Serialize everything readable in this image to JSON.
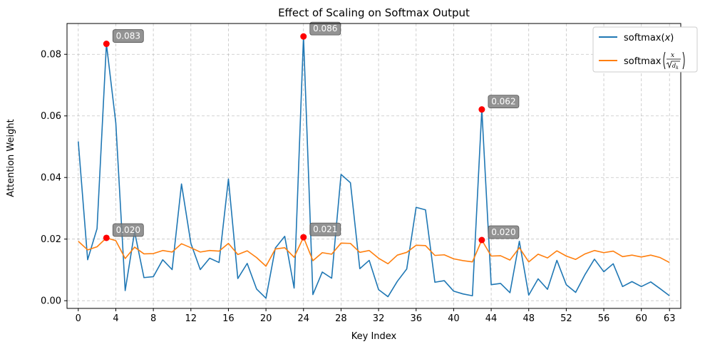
{
  "chart_data": {
    "type": "line",
    "title": "Effect of Scaling on Softmax Output",
    "xlabel": "Key Index",
    "ylabel": "Attention Weight",
    "xlim": [
      -1.2,
      64.2
    ],
    "ylim": [
      -0.0025,
      0.09
    ],
    "xticks": [
      0,
      4,
      8,
      12,
      16,
      20,
      24,
      28,
      32,
      36,
      40,
      44,
      48,
      52,
      56,
      60,
      63
    ],
    "yticks": [
      0.0,
      0.02,
      0.04,
      0.06,
      0.08
    ],
    "ytick_labels": [
      "0.00",
      "0.02",
      "0.04",
      "0.06",
      "0.08"
    ],
    "grid": true,
    "legend_position": "top-right",
    "series": [
      {
        "name": "softmax(x)",
        "color": "#1f77b4",
        "values": [
          0.0517,
          0.0133,
          0.0234,
          0.0834,
          0.0577,
          0.0033,
          0.0224,
          0.0075,
          0.0078,
          0.0133,
          0.0101,
          0.0379,
          0.0186,
          0.0101,
          0.0138,
          0.0124,
          0.0395,
          0.0072,
          0.0121,
          0.0038,
          0.0008,
          0.0171,
          0.0209,
          0.0041,
          0.0858,
          0.002,
          0.0093,
          0.0073,
          0.041,
          0.0383,
          0.0104,
          0.0131,
          0.0036,
          0.0013,
          0.0063,
          0.0103,
          0.0303,
          0.0295,
          0.006,
          0.0065,
          0.0031,
          0.0022,
          0.0016,
          0.0621,
          0.0052,
          0.0056,
          0.0026,
          0.0193,
          0.0018,
          0.0071,
          0.0037,
          0.0131,
          0.0052,
          0.0027,
          0.0085,
          0.0135,
          0.0094,
          0.012,
          0.0046,
          0.0062,
          0.0046,
          0.0061,
          0.0039,
          0.0016
        ]
      },
      {
        "name": "softmax(x/√dk)",
        "color": "#ff7f0e",
        "values": [
          0.0193,
          0.0165,
          0.0175,
          0.0204,
          0.0195,
          0.0137,
          0.0174,
          0.0152,
          0.0153,
          0.0163,
          0.0158,
          0.0185,
          0.0172,
          0.0158,
          0.0163,
          0.0161,
          0.0186,
          0.015,
          0.0162,
          0.014,
          0.0112,
          0.0168,
          0.0172,
          0.0141,
          0.0206,
          0.013,
          0.0156,
          0.0151,
          0.0187,
          0.0186,
          0.0157,
          0.0163,
          0.0138,
          0.012,
          0.0148,
          0.0157,
          0.018,
          0.0179,
          0.0147,
          0.0149,
          0.0136,
          0.013,
          0.0126,
          0.0197,
          0.0145,
          0.0146,
          0.0132,
          0.0172,
          0.0126,
          0.0151,
          0.0139,
          0.0162,
          0.0145,
          0.0134,
          0.0152,
          0.0163,
          0.0156,
          0.0161,
          0.0143,
          0.0148,
          0.0142,
          0.0148,
          0.014,
          0.0124
        ]
      }
    ],
    "annotations": [
      {
        "series": 0,
        "x": 3,
        "y": 0.0834,
        "label": "0.083"
      },
      {
        "series": 0,
        "x": 24,
        "y": 0.0858,
        "label": "0.086"
      },
      {
        "series": 0,
        "x": 43,
        "y": 0.0621,
        "label": "0.062"
      },
      {
        "series": 1,
        "x": 3,
        "y": 0.0204,
        "label": "0.020"
      },
      {
        "series": 1,
        "x": 24,
        "y": 0.0206,
        "label": "0.021"
      },
      {
        "series": 1,
        "x": 43,
        "y": 0.0197,
        "label": "0.020"
      }
    ],
    "marker_color": "#ff0000",
    "annotation_box_color": "#808080"
  }
}
